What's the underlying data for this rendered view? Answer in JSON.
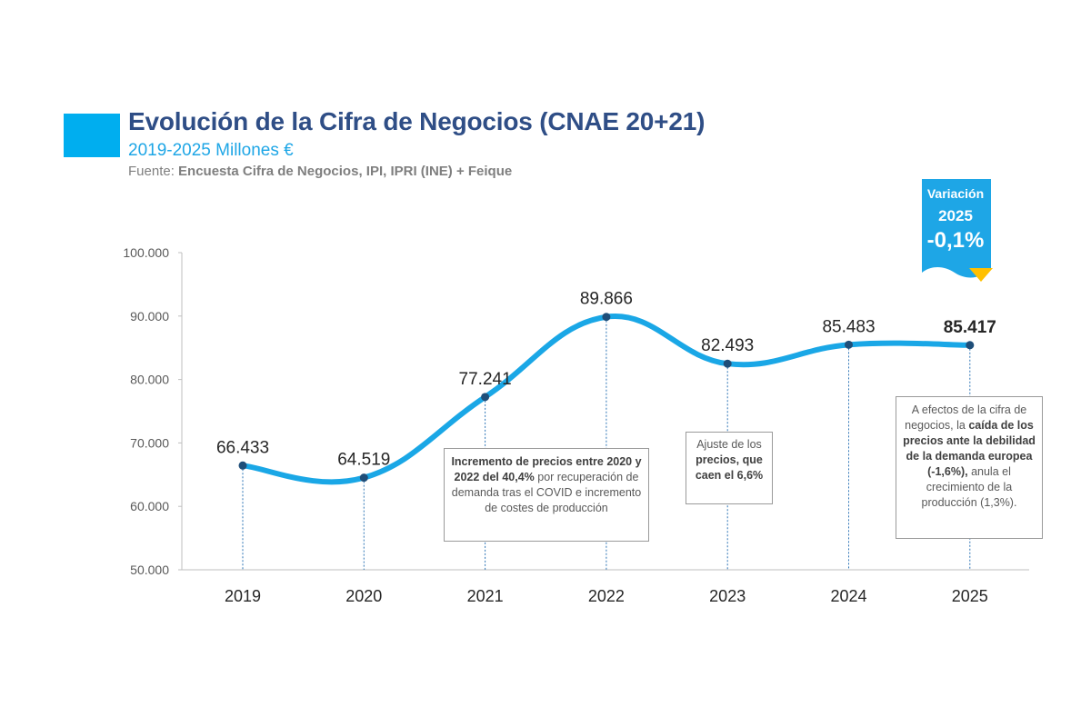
{
  "header": {
    "title": "Evolución de la Cifra de Negocios (CNAE 20+21)",
    "subtitle": "2019-2025 Millones €",
    "source_prefix": "Fuente: ",
    "source_text": "Encuesta Cifra de Negocios, IPI, IPRI (INE) + Feique"
  },
  "badge": {
    "line1": "Variación",
    "line2": "2025",
    "value": "-0,1%",
    "color": "#1ea6e6",
    "arrow_color": "#ffc000",
    "arrow_icon": "down-triangle-icon"
  },
  "annotations": [
    {
      "parts": [
        {
          "t": "Incremento de precios entre 2020 y 2022 del 40,4%",
          "b": true
        },
        {
          "t": " por recuperación de demanda tras el COVID e incremento de costes de producción",
          "b": false
        }
      ]
    },
    {
      "parts": [
        {
          "t": "Ajuste de los ",
          "b": false
        },
        {
          "t": "precios, que caen el 6,6%",
          "b": true
        }
      ]
    },
    {
      "parts": [
        {
          "t": "A efectos de la cifra de negocios, la ",
          "b": false
        },
        {
          "t": "caída de los precios ante la debilidad de la demanda europea (-1,6%),",
          "b": true
        },
        {
          "t": " anula el crecimiento de la producción (1,3%).",
          "b": false
        }
      ]
    }
  ],
  "chart_data": {
    "type": "line",
    "categories": [
      "2019",
      "2020",
      "2021",
      "2022",
      "2023",
      "2024",
      "2025"
    ],
    "series": [
      {
        "values": [
          66433,
          64519,
          77241,
          89866,
          82493,
          85483,
          85417
        ]
      }
    ],
    "data_labels": [
      "66.433",
      "64.519",
      "77.241",
      "89.866",
      "82.493",
      "85.483",
      "85.417"
    ],
    "highlight_label_index": 6,
    "ylim": [
      50000,
      100000
    ],
    "yticks": [
      50000,
      60000,
      70000,
      80000,
      90000,
      100000
    ],
    "ytick_labels": [
      "50.000",
      "60.000",
      "70.000",
      "80.000",
      "90.000",
      "100.000"
    ],
    "line_color": "#1aa7e6",
    "point_color": "#1f4e79",
    "grid": false,
    "legend": "none"
  }
}
